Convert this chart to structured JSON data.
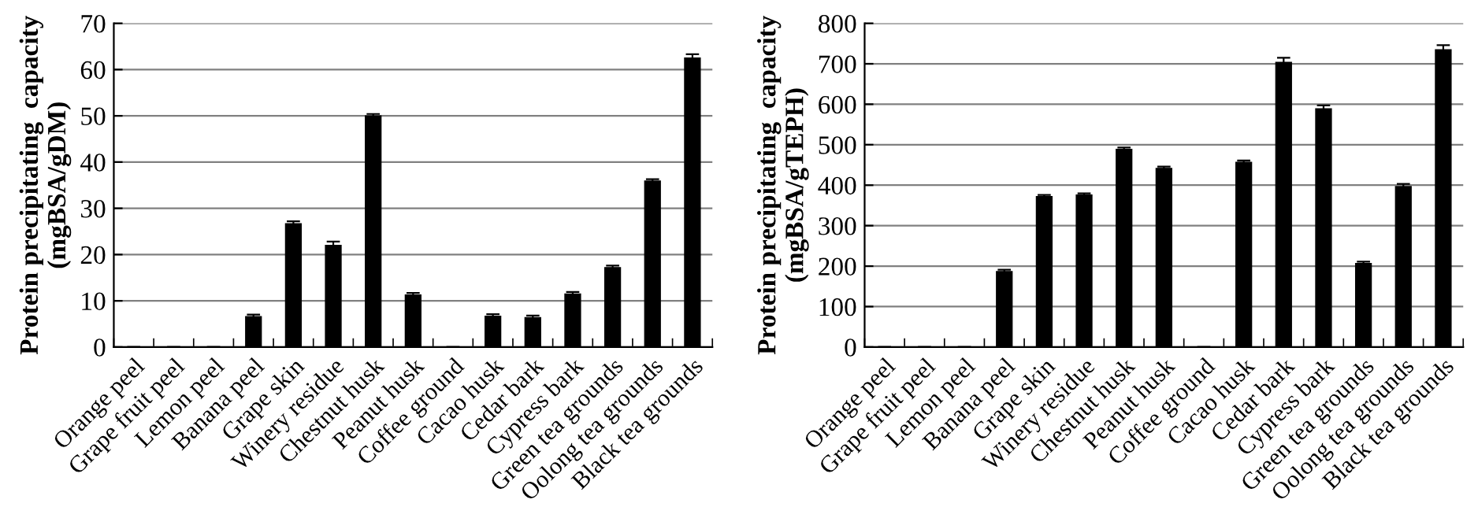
{
  "chart_data": [
    {
      "type": "bar",
      "ylabel": "Protein precipitating  capacity\n(mgBSA/gDM)",
      "categories": [
        "Orange peel",
        "Grape fruit peel",
        "Lemon peel",
        "Banana peel",
        "Grape skin",
        "Winery residue",
        "Chestnut husk",
        "Peanut husk",
        "Coffee ground",
        "Cacao husk",
        "Cedar bark",
        "Cypress bark",
        "Green tea grounds",
        "Oolong tea grounds",
        "Black tea grounds"
      ],
      "series": [
        {
          "color": "#000000",
          "values": [
            0,
            0,
            0,
            6.7,
            26.8,
            22.1,
            50.1,
            11.4,
            0,
            6.8,
            6.5,
            11.6,
            17.3,
            36.0,
            62.6
          ],
          "errors": [
            null,
            null,
            null,
            0.3,
            0.4,
            0.7,
            0.3,
            0.3,
            null,
            0.3,
            0.3,
            0.3,
            0.3,
            0.3,
            0.7
          ]
        }
      ],
      "ylim": [
        0,
        70
      ],
      "yticks": [
        0,
        10,
        20,
        30,
        40,
        50,
        60,
        70
      ],
      "grid": "y"
    },
    {
      "type": "bar",
      "ylabel": "Protein precipitating  capacity\n(mgBSA/gTEPH)",
      "categories": [
        "Orange peel",
        "Grape fruit peel",
        "Lemon peel",
        "Banana peel",
        "Grape skin",
        "Winery residue",
        "Chestnut husk",
        "Peanut husk",
        "Coffee ground",
        "Cacao husk",
        "Cedar bark",
        "Cypress bark",
        "Green tea grounds",
        "Oolong tea grounds",
        "Black tea grounds"
      ],
      "series": [
        {
          "color": "#000000",
          "values": [
            0,
            0,
            0,
            188,
            373,
            377,
            490,
            443,
            0,
            458,
            705,
            590,
            208,
            398,
            736
          ],
          "errors": [
            null,
            null,
            null,
            3,
            3,
            3,
            3,
            3,
            null,
            3,
            10,
            7,
            3,
            5,
            10
          ]
        }
      ],
      "ylim": [
        0,
        800
      ],
      "yticks": [
        0,
        100,
        200,
        300,
        400,
        500,
        600,
        700,
        800
      ],
      "grid": "y"
    }
  ]
}
